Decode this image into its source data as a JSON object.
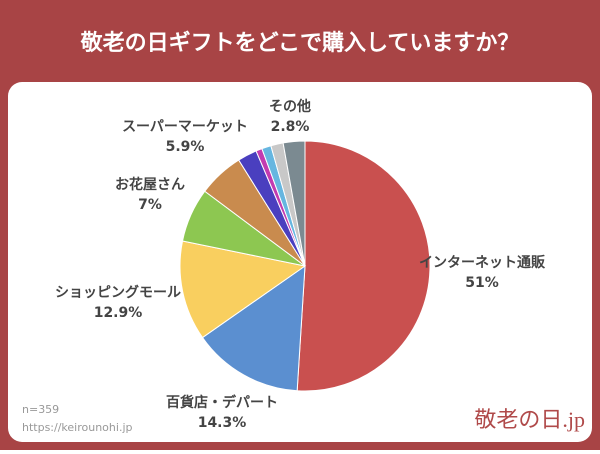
{
  "chart_data": {
    "type": "pie",
    "title": "敬老の日ギフトをどこで購入していますか？",
    "categories": [
      "インターネット通販",
      "百貨店・デパート",
      "ショッピングモール",
      "お花屋さん",
      "スーパーマーケット",
      null,
      null,
      null,
      null,
      "その他"
    ],
    "values": [
      51,
      14.3,
      12.9,
      7,
      5.9,
      2.5,
      0.8,
      1.2,
      1.6,
      2.8
    ],
    "value_labels": [
      "51%",
      "14.3%",
      "12.9%",
      "7%",
      "5.9%",
      null,
      null,
      null,
      null,
      "2.8%"
    ],
    "colors": [
      "#c9504f",
      "#5b8fd0",
      "#f9cf5f",
      "#8dc751",
      "#c98b4e",
      "#4a3fbf",
      "#c23bb0",
      "#66b6e0",
      "#c8c8c8",
      "#7b8a91"
    ],
    "sample": "n=359",
    "source": "https://keirounohi.jp",
    "logo": "敬老の日.jp"
  }
}
